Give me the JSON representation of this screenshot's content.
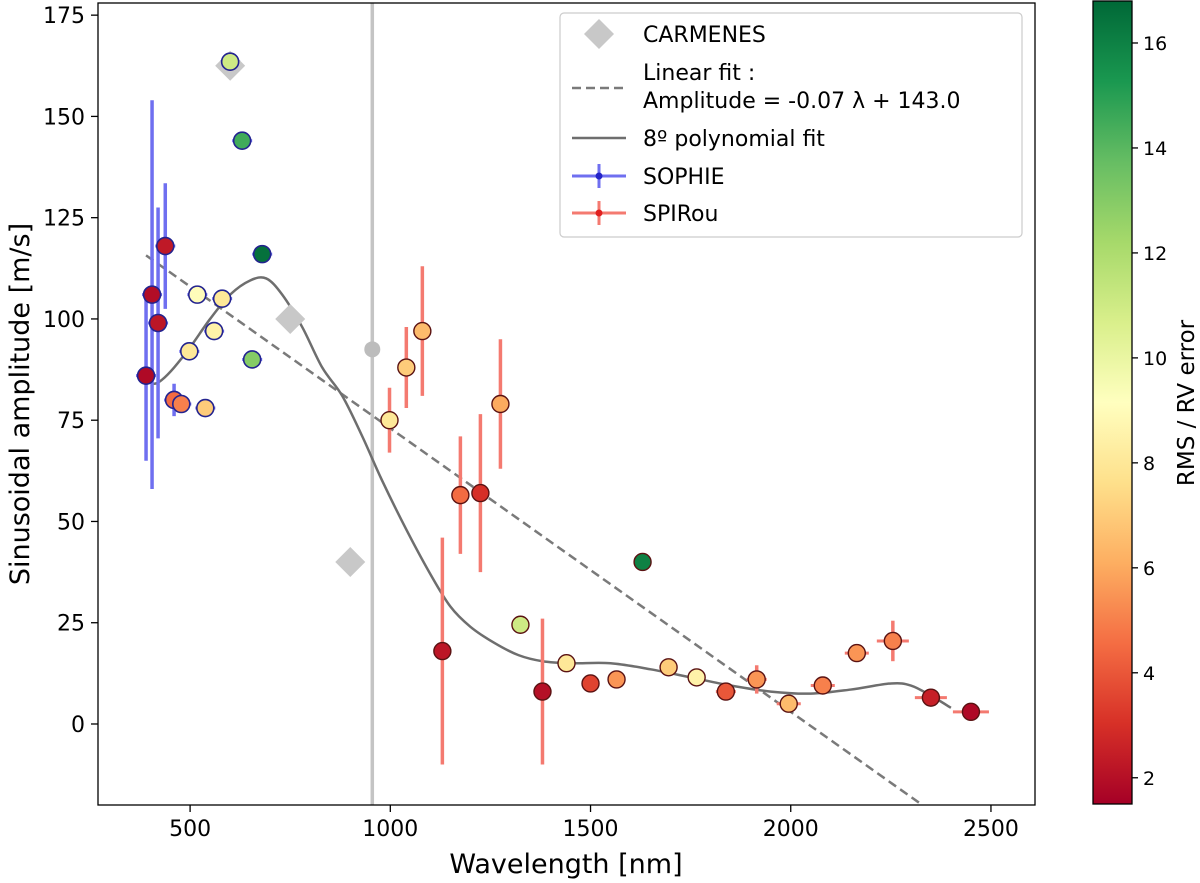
{
  "chart_data": {
    "type": "scatter",
    "xlabel": "Wavelength [nm]",
    "ylabel": "Sinusoidal amplitude [m/s]",
    "xlim": [
      270,
      2610
    ],
    "ylim": [
      -20,
      178
    ],
    "xticks": [
      500,
      1000,
      1500,
      2000,
      2500
    ],
    "yticks": [
      0,
      25,
      50,
      75,
      100,
      125,
      150,
      175
    ],
    "vertical_line": {
      "x": 955,
      "color": "#c4c4c4"
    },
    "colorbar": {
      "label": "RMS / RV error",
      "range": [
        1.5,
        16.8
      ],
      "ticks": [
        2,
        4,
        6,
        8,
        10,
        12,
        14,
        16
      ],
      "colormap": "RdYlGn"
    },
    "legend": {
      "position": "top-right",
      "entries": [
        {
          "key": "carmenes",
          "label": "CARMENES"
        },
        {
          "key": "linear",
          "label": "Linear fit :",
          "label2": "Amplitude = -0.07 λ + 143.0"
        },
        {
          "key": "poly",
          "label": "8º polynomial fit"
        },
        {
          "key": "sophie",
          "label": "SOPHIE"
        },
        {
          "key": "spirou",
          "label": "SPIRou"
        }
      ]
    },
    "linear_fit": {
      "slope": -0.07,
      "intercept": 143.0,
      "x_range": [
        390,
        2320
      ],
      "color": "#7a7a7a"
    },
    "polynomial_fit": {
      "color": "#6e6e6e",
      "points": [
        [
          390,
          85
        ],
        [
          410,
          84
        ],
        [
          430,
          85
        ],
        [
          460,
          88
        ],
        [
          500,
          93
        ],
        [
          550,
          100
        ],
        [
          600,
          106
        ],
        [
          650,
          109.5
        ],
        [
          690,
          110
        ],
        [
          730,
          106
        ],
        [
          780,
          98
        ],
        [
          830,
          88
        ],
        [
          880,
          81
        ],
        [
          930,
          71
        ],
        [
          980,
          60
        ],
        [
          1040,
          48
        ],
        [
          1100,
          37
        ],
        [
          1150,
          29
        ],
        [
          1200,
          24
        ],
        [
          1260,
          20
        ],
        [
          1320,
          17
        ],
        [
          1380,
          15.5
        ],
        [
          1450,
          15
        ],
        [
          1550,
          15
        ],
        [
          1650,
          13.5
        ],
        [
          1750,
          11.5
        ],
        [
          1850,
          9.5
        ],
        [
          1950,
          8
        ],
        [
          2050,
          7.5
        ],
        [
          2150,
          8.5
        ],
        [
          2250,
          10
        ],
        [
          2300,
          9.5
        ],
        [
          2350,
          7
        ],
        [
          2400,
          4
        ]
      ]
    },
    "carmenes": [
      {
        "x": 600,
        "y": 162.5
      },
      {
        "x": 750,
        "y": 100
      },
      {
        "x": 900,
        "y": 40
      }
    ],
    "gray_point": {
      "x": 955,
      "y": 92.5
    },
    "sophie": [
      {
        "x": 390,
        "y": 86,
        "err": 21,
        "c": 1.8
      },
      {
        "x": 405,
        "y": 106,
        "err": 48,
        "c": 1.9
      },
      {
        "x": 420,
        "y": 99,
        "err": 28.5,
        "c": 2.2
      },
      {
        "x": 438,
        "y": 118,
        "err": 15.5,
        "c": 2.3
      },
      {
        "x": 460,
        "y": 80,
        "err": 4,
        "c": 4.5
      },
      {
        "x": 478,
        "y": 79,
        "err": 2,
        "c": 5
      },
      {
        "x": 498,
        "y": 92,
        "err": 1,
        "c": 8
      },
      {
        "x": 518,
        "y": 106,
        "err": 1,
        "c": 9
      },
      {
        "x": 538,
        "y": 78,
        "err": 1,
        "c": 7
      },
      {
        "x": 560,
        "y": 97,
        "err": 1,
        "c": 8.5
      },
      {
        "x": 580,
        "y": 105,
        "err": 1,
        "c": 8
      },
      {
        "x": 600,
        "y": 163.5,
        "err": 1,
        "c": 11
      },
      {
        "x": 630,
        "y": 144,
        "err": 1,
        "c": 14.5
      },
      {
        "x": 655,
        "y": 90,
        "err": 1,
        "c": 13
      },
      {
        "x": 680,
        "y": 116,
        "err": 1,
        "c": 16.5
      }
    ],
    "spirou": [
      {
        "x": 998,
        "y": 75,
        "err": 8,
        "xerr": 0,
        "c": 8
      },
      {
        "x": 1040,
        "y": 88,
        "err": 10,
        "xerr": 0,
        "c": 7
      },
      {
        "x": 1080,
        "y": 97,
        "err": 16,
        "xerr": 0,
        "c": 6.5
      },
      {
        "x": 1130,
        "y": 18,
        "err": 28,
        "xerr": 0,
        "c": 2.2
      },
      {
        "x": 1175,
        "y": 56.5,
        "err": 14.5,
        "xerr": 0,
        "c": 4.5
      },
      {
        "x": 1225,
        "y": 57,
        "err": 19.5,
        "xerr": 0,
        "c": 3
      },
      {
        "x": 1275,
        "y": 79,
        "err": 16,
        "xerr": 0,
        "c": 6
      },
      {
        "x": 1325,
        "y": 24.5,
        "err": 1.5,
        "xerr": 10,
        "c": 11
      },
      {
        "x": 1380,
        "y": 8,
        "err": 18,
        "xerr": 0,
        "c": 2
      },
      {
        "x": 1440,
        "y": 15,
        "err": 1,
        "xerr": 15,
        "c": 8
      },
      {
        "x": 1500,
        "y": 10,
        "err": 1,
        "xerr": 15,
        "c": 3.5
      },
      {
        "x": 1565,
        "y": 11,
        "err": 1,
        "xerr": 20,
        "c": 5.5
      },
      {
        "x": 1630,
        "y": 40,
        "err": 1,
        "xerr": 20,
        "c": 16
      },
      {
        "x": 1695,
        "y": 14,
        "err": 1,
        "xerr": 20,
        "c": 7
      },
      {
        "x": 1765,
        "y": 11.5,
        "err": 1,
        "xerr": 20,
        "c": 8.5
      },
      {
        "x": 1838,
        "y": 8,
        "err": 1,
        "xerr": 25,
        "c": 4
      },
      {
        "x": 1915,
        "y": 11,
        "err": 3.5,
        "xerr": 25,
        "c": 5.5
      },
      {
        "x": 1995,
        "y": 5,
        "err": 1,
        "xerr": 30,
        "c": 6.5
      },
      {
        "x": 2080,
        "y": 9.5,
        "err": 1,
        "xerr": 30,
        "c": 5
      },
      {
        "x": 2165,
        "y": 17.5,
        "err": 1,
        "xerr": 30,
        "c": 5.5
      },
      {
        "x": 2255,
        "y": 20.5,
        "err": 5,
        "xerr": 40,
        "c": 5
      },
      {
        "x": 2350,
        "y": 6.5,
        "err": 1,
        "xerr": 40,
        "c": 2.5
      },
      {
        "x": 2450,
        "y": 3,
        "err": 1,
        "xerr": 45,
        "c": 1.8
      }
    ],
    "colors": {
      "sophie_err": "#6f6ff0",
      "spirou_err": "#f47a70",
      "sophie_edge": "#23238f",
      "spirou_edge": "#5a1212",
      "carmenes": "#c8c8c8",
      "gray_point": "#bcbcbc"
    }
  }
}
